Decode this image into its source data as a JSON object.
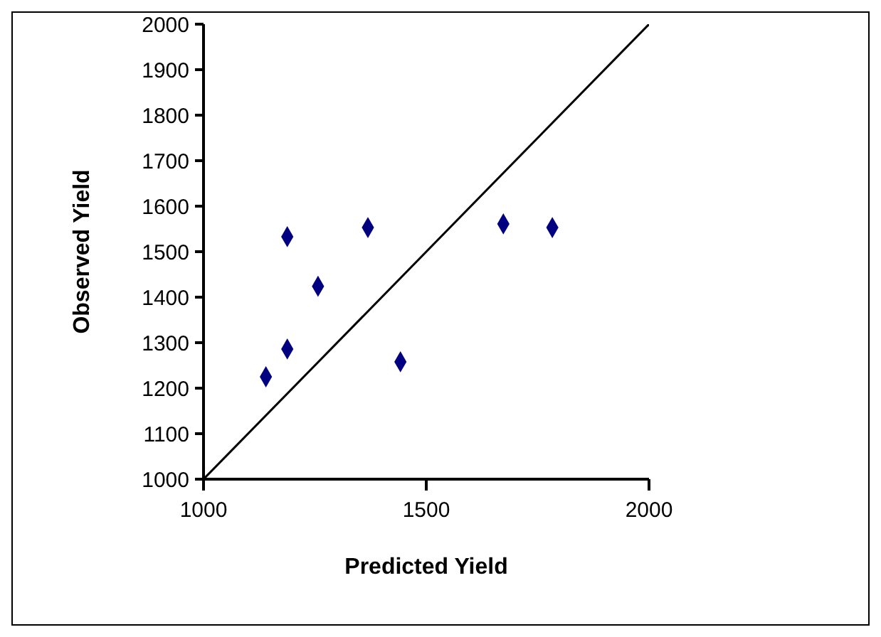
{
  "chart_data": {
    "type": "scatter",
    "xlabel": "Predicted Yield",
    "ylabel": "Observed Yield",
    "xlim": [
      1000,
      2000
    ],
    "xticks": [
      1000,
      1500,
      2000
    ],
    "ylim": [
      1000,
      2000
    ],
    "yticks": [
      1000,
      1100,
      1200,
      1300,
      1400,
      1500,
      1600,
      1700,
      1800,
      1900,
      2000
    ],
    "grid": false,
    "marker": "diamond",
    "series": [
      {
        "color": "#000080",
        "x": [
          1140,
          1188,
          1188,
          1257,
          1369,
          1442,
          1673,
          1783
        ],
        "values": [
          1225,
          1286,
          1533,
          1424,
          1553,
          1258,
          1561,
          1553
        ]
      },
      {
        "type": "line",
        "color": "#000000",
        "marker": "none",
        "x": [
          1000,
          2000
        ],
        "values": [
          1000,
          2000
        ]
      }
    ]
  }
}
